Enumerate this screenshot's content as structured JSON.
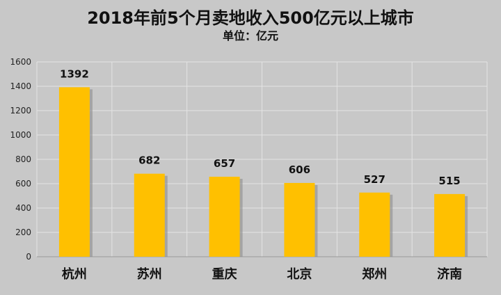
{
  "chart_data": {
    "type": "bar",
    "title": "2018年前5个月卖地收入500亿元以上城市",
    "subtitle": "单位：亿元",
    "categories": [
      "杭州",
      "苏州",
      "重庆",
      "北京",
      "郑州",
      "济南"
    ],
    "values": [
      1392,
      682,
      657,
      606,
      527,
      515
    ],
    "data_labels": [
      "1392",
      "682",
      "657",
      "606",
      "527",
      "515"
    ],
    "ylim": [
      0,
      1600
    ],
    "yticks": [
      0,
      200,
      400,
      600,
      800,
      1000,
      1200,
      1400,
      1600
    ],
    "grid": true,
    "bar_color": "#FFC000",
    "background_color": "#C8C8C8"
  }
}
